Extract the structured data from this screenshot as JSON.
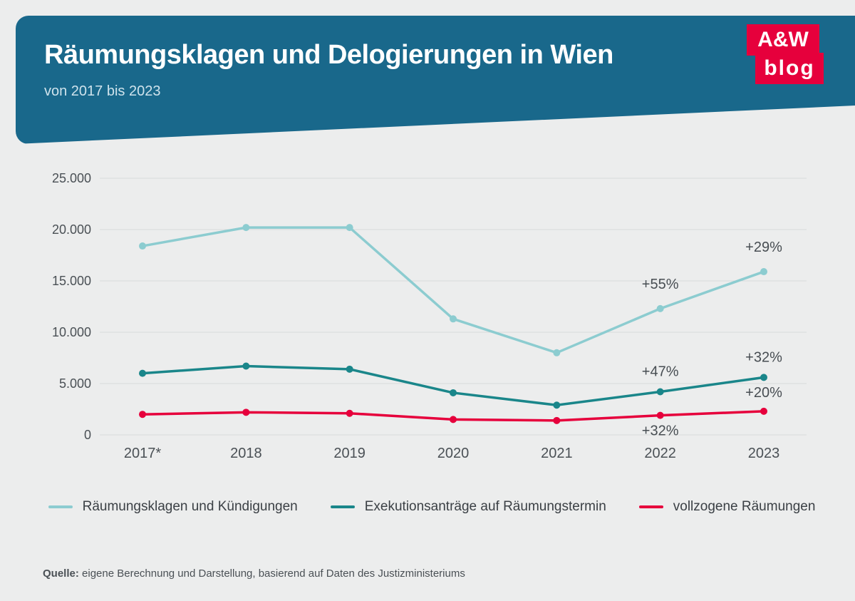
{
  "header": {
    "title": "Räumungsklagen und Delogierungen in Wien",
    "subtitle": "von 2017 bis 2023"
  },
  "logo": {
    "line1": "A&W",
    "line2": "blog"
  },
  "chart": {
    "type": "line",
    "background_color": "#eceded",
    "grid_color": "#d9dbdc",
    "text_color": "#4a5055",
    "xlabels": [
      "2017*",
      "2018",
      "2019",
      "2020",
      "2021",
      "2022",
      "2023"
    ],
    "ylim": [
      0,
      25000
    ],
    "ytick_step": 5000,
    "ylabels": [
      "0",
      "5.000",
      "10.000",
      "15.000",
      "20.000",
      "25.000"
    ],
    "series": [
      {
        "key": "raeumungsklagen",
        "name": "Räumungsklagen und Kündigungen",
        "color": "#8cccd0",
        "line_width": 3.5,
        "marker_radius": 5,
        "values": [
          18400,
          20200,
          20200,
          11300,
          8000,
          12300,
          15900
        ],
        "annotations": [
          {
            "index": 5,
            "text": "+55%",
            "dy": -28
          },
          {
            "index": 6,
            "text": "+29%",
            "dy": -28
          }
        ]
      },
      {
        "key": "exekutionsantraege",
        "name": "Exekutionsanträge auf Räumungstermin",
        "color": "#1a868a",
        "line_width": 3.5,
        "marker_radius": 5,
        "values": [
          6000,
          6700,
          6400,
          4100,
          2900,
          4200,
          5600
        ],
        "annotations": [
          {
            "index": 5,
            "text": "+47%",
            "dy": -22
          },
          {
            "index": 6,
            "text": "+32%",
            "dy": -22
          }
        ]
      },
      {
        "key": "vollzogene",
        "name": "vollzogene Räumungen",
        "color": "#e6003c",
        "line_width": 3.5,
        "marker_radius": 5,
        "values": [
          2000,
          2200,
          2100,
          1500,
          1400,
          1900,
          2300
        ],
        "annotations": [
          {
            "index": 5,
            "text": "+32%",
            "dy": 28
          },
          {
            "index": 6,
            "text": "+20%",
            "dy": -20
          }
        ]
      }
    ]
  },
  "legend": [
    {
      "label": "Räumungsklagen und Kündigungen",
      "color": "#8cccd0"
    },
    {
      "label": "Exekutionsanträge auf Räumungstermin",
      "color": "#1a868a"
    },
    {
      "label": "vollzogene Räumungen",
      "color": "#e6003c"
    }
  ],
  "source": {
    "label": "Quelle:",
    "text": "eigene Berechnung und Darstellung, basierend auf Daten des Justizministeriums"
  }
}
